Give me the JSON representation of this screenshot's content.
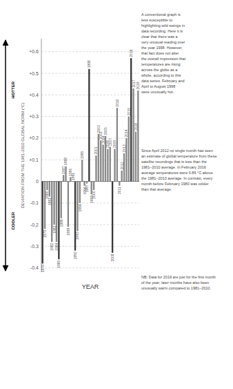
{
  "chart_data": {
    "type": "bar",
    "categories": [
      "1978",
      "1979",
      "1980",
      "1981",
      "1982",
      "1983",
      "1984",
      "1985",
      "1986",
      "1987",
      "1988",
      "1989",
      "1990",
      "1991",
      "1992",
      "1993",
      "1994",
      "1995",
      "1996",
      "1997",
      "1998",
      "1999",
      "2000",
      "2001",
      "2002",
      "2003",
      "2004",
      "2005",
      "2006",
      "2007",
      "2008",
      "2009",
      "2010",
      "2011",
      "2012",
      "2013",
      "2014",
      "2015",
      "2016",
      "2017",
      "2018",
      "2019"
    ],
    "values": [
      -0.38,
      -0.22,
      -0.04,
      -0.07,
      -0.28,
      -0.2,
      -0.28,
      -0.36,
      -0.17,
      0.03,
      0.07,
      -0.21,
      0.02,
      0.0,
      -0.32,
      -0.23,
      -0.1,
      0.1,
      -0.02,
      -0.01,
      0.52,
      -0.06,
      -0.04,
      0.12,
      0.22,
      0.19,
      0.17,
      0.21,
      0.15,
      0.16,
      -0.33,
      0.15,
      0.34,
      -0.02,
      0.05,
      0.13,
      0.2,
      0.3,
      0.57,
      0.43,
      0.23,
      0.42
    ],
    "colors": [
      "#3a3a3a",
      "#8a8a8a",
      "#8a8a8a",
      "#8a8a8a",
      "#8a8a8a",
      "#8a8a8a",
      "#8a8a8a",
      "#3a3a3a",
      "#8a8a8a",
      "#8a8a8a",
      "#8a8a8a",
      "#8a8a8a",
      "#8a8a8a",
      "#8a8a8a",
      "#3a3a3a",
      "#8a8a8a",
      "#8a8a8a",
      "#8a8a8a",
      "#8a8a8a",
      "#8a8a8a",
      "#3a3a3a",
      "#8a8a8a",
      "#8a8a8a",
      "#8a8a8a",
      "#8a8a8a",
      "#8a8a8a",
      "#8a8a8a",
      "#8a8a8a",
      "#8a8a8a",
      "#8a8a8a",
      "#3a3a3a",
      "#8a8a8a",
      "#8a8a8a",
      "#8a8a8a",
      "#8a8a8a",
      "#8a8a8a",
      "#8a8a8a",
      "#8a8a8a",
      "#3a3a3a",
      "#8a8a8a",
      "#8a8a8a",
      "#8a8a8a"
    ],
    "ylabel": "DEVIATION FROM THE 1981-2010 GLOBAL NORM (°C)",
    "xlabel": "YEAR",
    "ylim": [
      -0.42,
      0.66
    ],
    "yticks": [
      -0.4,
      -0.3,
      -0.2,
      -0.1,
      0,
      {
        "value": 0.1,
        "label": "+0.1"
      },
      {
        "value": 0.2,
        "label": "+0.2"
      },
      {
        "value": 0.3,
        "label": "+0.3"
      },
      {
        "value": 0.4,
        "label": "+0.4"
      },
      {
        "value": 0.5,
        "label": "+0.5"
      },
      {
        "value": 0.6,
        "label": "+0.6"
      }
    ],
    "grid": true,
    "scale_labels": [
      "COOLER",
      "HOTTER"
    ],
    "annotations": [
      "A conventional graph is\nless susceptible to\nhighlighting wild swings in\ndata recording. Here it is\nclear that there was a\nvery unusual reading over\nthe year 1998. However,\nthat fact does not alter\nthe overall impression that\ntemperatures are rising\nacross the globe as a\nwhole, according to this\ndata series. February and\nApril to August 1998\nwere unusually hot.",
      "Since April 2012 no single month has seen\nan estimate of global temperature from these\nsatellite recordings that is less than the\n1981–2010 average. In February 2016\naverage temperatures were 0.86 °C above\nthe 1981–2010 average. In contrast, every\nmonth before February 1980 was colder\nthan that average.",
      "NB: Data for 2019 are just for the first month\nof the year; later months have also been\nunusually warm compared to 1981–2010."
    ]
  }
}
